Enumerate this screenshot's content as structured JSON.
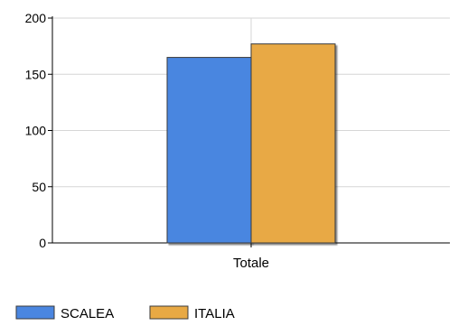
{
  "chart_data": {
    "type": "bar",
    "categories": [
      "Totale"
    ],
    "series": [
      {
        "name": "SCALEA",
        "values": [
          165
        ],
        "color": "#4A86E0"
      },
      {
        "name": "ITALIA",
        "values": [
          177
        ],
        "color": "#E8A944"
      }
    ],
    "ylim": [
      0,
      200
    ],
    "yticks": [
      0,
      50,
      100,
      150,
      200
    ],
    "xlabel": "",
    "ylabel": "",
    "title": "",
    "grid": true,
    "legend_position": "bottom-left"
  }
}
